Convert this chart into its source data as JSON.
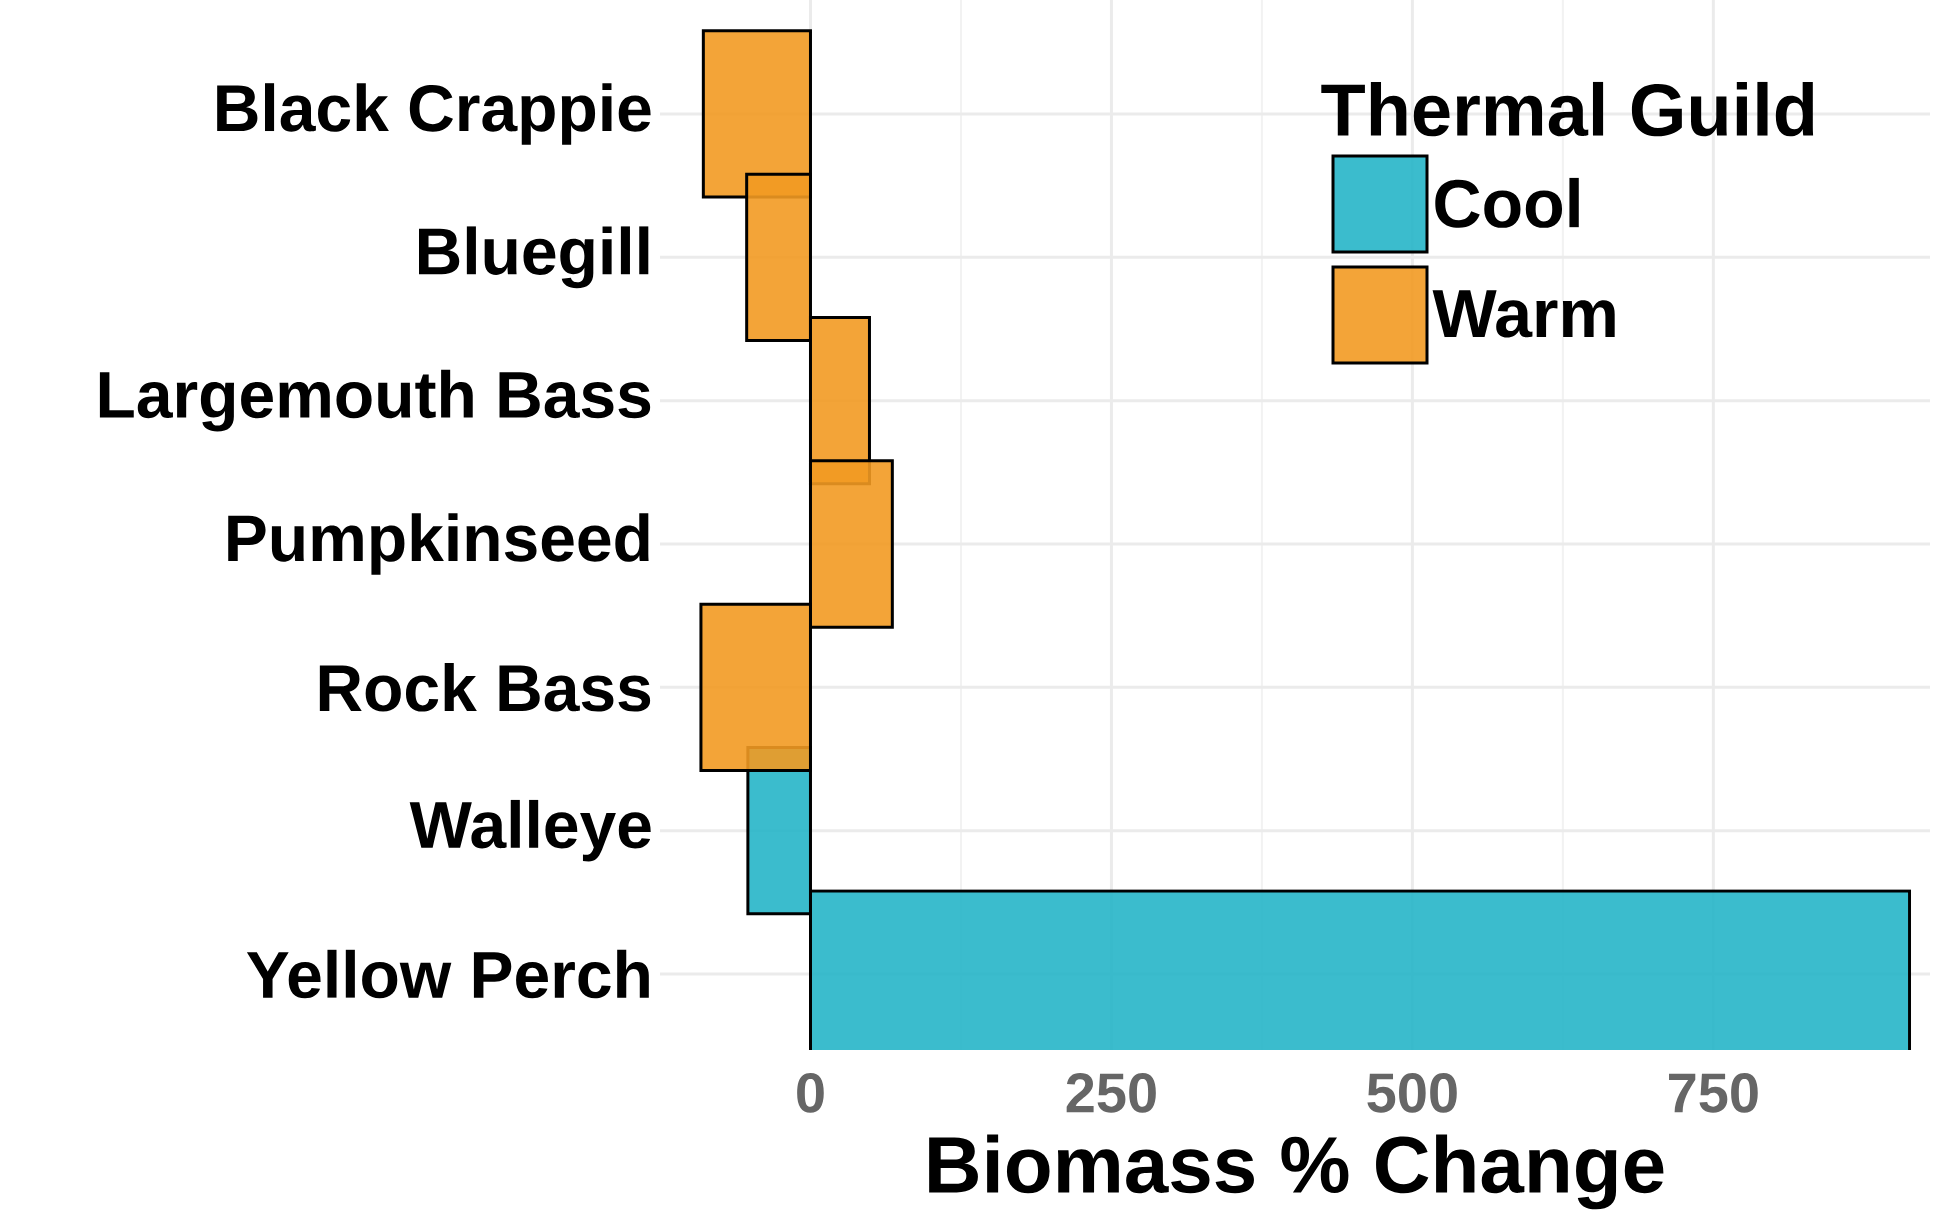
{
  "chart_data": {
    "type": "bar",
    "orientation": "horizontal",
    "xlabel": "Biomass % Change",
    "legend_title": "Thermal Guild",
    "legend": "top right",
    "grid": true,
    "stacked": true,
    "categories": [
      "Black Crappie",
      "Bluegill",
      "Largemouth Bass",
      "Pumpkinseed",
      "Rock Bass",
      "Walleye",
      "Yellow Perch"
    ],
    "xlim": [
      -125,
      930
    ],
    "xticks": [
      0,
      250,
      500,
      750
    ],
    "series": [
      {
        "name": "Cool",
        "color": "#26b5c8",
        "values": [
          null,
          null,
          null,
          null,
          null,
          -52,
          913
        ]
      },
      {
        "name": "Warm",
        "color": "#f29a22",
        "values": [
          -89,
          -53,
          49,
          68,
          -91,
          null,
          null
        ]
      }
    ]
  }
}
